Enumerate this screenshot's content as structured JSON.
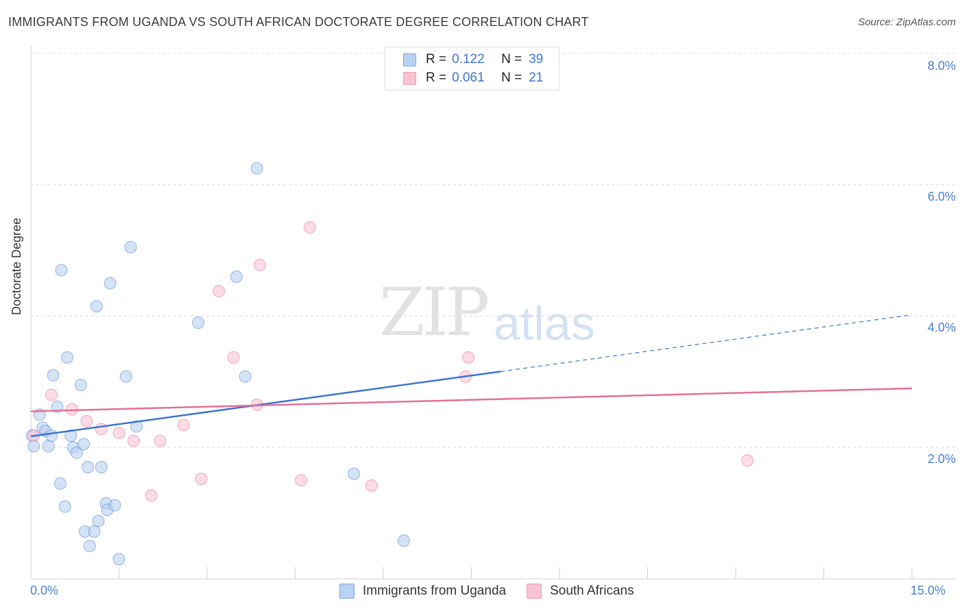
{
  "title": "IMMIGRANTS FROM UGANDA VS SOUTH AFRICAN DOCTORATE DEGREE CORRELATION CHART",
  "source": "Source: ZipAtlas.com",
  "watermark": {
    "zip": "ZIP",
    "atlas": "atlas"
  },
  "legend_top": [
    {
      "r_label": "R =",
      "r_value": "0.122",
      "n_label": "N =",
      "n_value": "39",
      "color": "#b9d1f2"
    },
    {
      "r_label": "R =",
      "r_value": "0.061",
      "n_label": "N =",
      "n_value": "21",
      "color": "#f8c3d3"
    }
  ],
  "legend_bottom": [
    "Immigrants from Uganda",
    "South Africans"
  ],
  "chart_data": {
    "type": "scatter",
    "title": "IMMIGRANTS FROM UGANDA VS SOUTH AFRICAN DOCTORATE DEGREE CORRELATION CHART",
    "xlabel": "",
    "ylabel": "Doctorate Degree",
    "xlim": [
      0,
      15
    ],
    "ylim": [
      0,
      8
    ],
    "x_tick_labels": [
      "0.0%",
      "15.0%"
    ],
    "y_tick_labels": [
      "2.0%",
      "4.0%",
      "6.0%",
      "8.0%"
    ],
    "y_ticks": [
      2,
      4,
      6,
      8
    ],
    "grid": true,
    "legend_position": "top-center",
    "series": [
      {
        "name": "Immigrants from Uganda",
        "color": "#4a7fd0",
        "fill": "#b9d1f2",
        "points": [
          [
            0.02,
            2.18
          ],
          [
            0.05,
            2.02
          ],
          [
            0.15,
            2.5
          ],
          [
            0.2,
            2.3
          ],
          [
            0.25,
            2.25
          ],
          [
            0.3,
            2.02
          ],
          [
            0.35,
            2.18
          ],
          [
            0.38,
            3.1
          ],
          [
            0.45,
            2.62
          ],
          [
            0.5,
            1.45
          ],
          [
            0.52,
            4.7
          ],
          [
            0.58,
            1.1
          ],
          [
            0.62,
            3.37
          ],
          [
            0.68,
            2.18
          ],
          [
            0.72,
            2.0
          ],
          [
            0.78,
            1.92
          ],
          [
            0.85,
            2.95
          ],
          [
            0.9,
            2.05
          ],
          [
            0.92,
            0.72
          ],
          [
            0.97,
            1.7
          ],
          [
            1.0,
            0.5
          ],
          [
            1.08,
            0.72
          ],
          [
            1.12,
            4.15
          ],
          [
            1.15,
            0.88
          ],
          [
            1.2,
            1.7
          ],
          [
            1.28,
            1.15
          ],
          [
            1.3,
            1.05
          ],
          [
            1.35,
            4.5
          ],
          [
            1.43,
            1.12
          ],
          [
            1.5,
            0.3
          ],
          [
            1.62,
            3.08
          ],
          [
            1.7,
            5.05
          ],
          [
            1.8,
            2.32
          ],
          [
            2.85,
            3.9
          ],
          [
            3.5,
            4.6
          ],
          [
            3.65,
            3.08
          ],
          [
            3.85,
            6.25
          ],
          [
            5.5,
            1.6
          ],
          [
            6.35,
            0.58
          ]
        ]
      },
      {
        "name": "South Africans",
        "color": "#e36f97",
        "fill": "#f8c3d3",
        "points": [
          [
            0.05,
            2.18
          ],
          [
            0.35,
            2.8
          ],
          [
            0.7,
            2.58
          ],
          [
            0.95,
            2.4
          ],
          [
            1.2,
            2.28
          ],
          [
            1.5,
            2.22
          ],
          [
            1.75,
            2.1
          ],
          [
            2.05,
            1.27
          ],
          [
            2.2,
            2.1
          ],
          [
            2.6,
            2.34
          ],
          [
            2.9,
            1.52
          ],
          [
            3.2,
            4.38
          ],
          [
            3.45,
            3.37
          ],
          [
            3.85,
            2.65
          ],
          [
            3.9,
            4.78
          ],
          [
            4.6,
            1.5
          ],
          [
            4.75,
            5.35
          ],
          [
            5.8,
            1.42
          ],
          [
            7.4,
            3.08
          ],
          [
            7.45,
            3.37
          ],
          [
            12.2,
            1.8
          ]
        ]
      }
    ],
    "trend_lines": [
      {
        "series": "Immigrants from Uganda",
        "x_solid": [
          0,
          8
        ],
        "x_dashed": [
          8,
          15
        ],
        "y_at_0": 2.17,
        "y_at_15": 4.02,
        "color": "#3b74d0"
      },
      {
        "series": "South Africans",
        "x": [
          0,
          15
        ],
        "y_at_0": 2.55,
        "y_at_15": 2.9,
        "color": "#e36f97"
      }
    ]
  }
}
